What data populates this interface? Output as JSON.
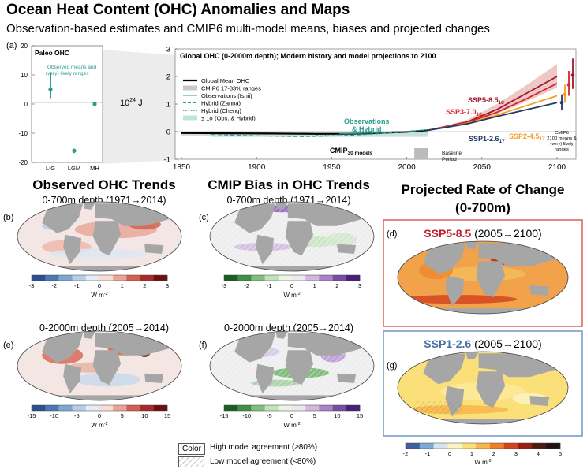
{
  "header": {
    "title": "Ocean Heat Content (OHC) Anomalies and Maps",
    "subtitle": "Observation-based estimates and CMIP6 multi-model means, biases and projected changes"
  },
  "panel_labels": {
    "a": "(a)",
    "b": "(b)",
    "c": "(c)",
    "d": "(d)",
    "e": "(e)",
    "f": "(f)",
    "g": "(g)"
  },
  "paleo": {
    "title": "Paleo OHC",
    "legend_line1": "Observed means and",
    "legend_line2": "(very) likely ranges",
    "unit_base": "10",
    "unit_exp": "24",
    "unit_suffix": " J",
    "color": "#2a9d8f"
  },
  "main_chart": {
    "title": "Global OHC (0-2000m depth); Modern history and model projections to 2100",
    "legend": [
      {
        "label": "Global Mean OHC",
        "style": "solid-black"
      },
      {
        "label": "CMIP6 17-83% ranges",
        "style": "grey-fill"
      },
      {
        "label": "Observations (Ishii)",
        "style": "teal-thin"
      },
      {
        "label": "Hybrid (Zanna)",
        "style": "teal-dash"
      },
      {
        "label": "Hybrid (Cheng)",
        "style": "teal-dot"
      },
      {
        "label": "± 1σ (Obs. & Hybrid)",
        "style": "teal-fill"
      }
    ],
    "annotations": {
      "obs_hybrid_line1": "Observations",
      "obs_hybrid_line2": "& Hybrid",
      "cmip_base": "CMIP",
      "cmip_sub": "30 models",
      "baseline_line1": "Baseline",
      "baseline_line2": "Period",
      "cmip6_box": [
        "CMIP6",
        "2100 means &",
        "(very) likely",
        "ranges"
      ]
    },
    "scenarios": [
      {
        "name": "SSP5-8.5",
        "count": "18",
        "color": "#9e1a2a"
      },
      {
        "name": "SSP3-7.0",
        "count": "18",
        "color": "#d9252e"
      },
      {
        "name": "SSP2-4.5",
        "count": "17",
        "color": "#f2a023"
      },
      {
        "name": "SSP1-2.6",
        "count": "17",
        "color": "#1f3a63"
      }
    ]
  },
  "sections": {
    "observed": {
      "heading": "Observed OHC Trends",
      "sub1": "0-700m depth (1971→2014)",
      "sub2": "0-2000m depth (2005→2014)"
    },
    "bias": {
      "heading": "CMIP Bias in OHC Trends",
      "sub1": "0-700m depth (1971→2014)",
      "sub2": "0-2000m depth (2005→2014)"
    },
    "projected": {
      "heading_line1": "Projected Rate of Change",
      "heading_line2": "(0-700m)",
      "ssp585_label": "SSP5-8.5",
      "ssp585_period": " (2005→2100)",
      "ssp126_label": "SSP1-2.6",
      "ssp126_period": " (2005→2100)"
    }
  },
  "colorbars": {
    "unit_base": "W m",
    "unit_exp": "-2",
    "b_ticks": [
      "-3",
      "-2",
      "-1",
      "0",
      "1",
      "2",
      "3"
    ],
    "c_ticks": [
      "-3",
      "-2",
      "-1",
      "0",
      "1",
      "2",
      "3"
    ],
    "e_ticks": [
      "-15",
      "-10",
      "-5",
      "0",
      "5",
      "10",
      "15"
    ],
    "f_ticks": [
      "-15",
      "-10",
      "-5",
      "0",
      "5",
      "10",
      "15"
    ],
    "g_ticks": [
      "-2",
      "-1",
      "0",
      "1",
      "2",
      "3",
      "4",
      "5"
    ]
  },
  "agreement_legend": {
    "color_box": "Color",
    "high": "High model agreement (≥80%)",
    "low": "Low model agreement (<80%)"
  },
  "chart_data": [
    {
      "type": "scatter",
      "title": "Paleo OHC",
      "categories": [
        "LIG",
        "LGM",
        "MH"
      ],
      "values": [
        5,
        -16,
        0
      ],
      "ranges": [
        [
          2,
          11
        ],
        [
          -16.8,
          -15.3
        ],
        [
          -0.6,
          0.6
        ]
      ],
      "ylim": [
        -20,
        20
      ],
      "yticks": [
        "20",
        "10",
        "0",
        "-10",
        "-20"
      ],
      "ylabel": "10^24 J"
    },
    {
      "type": "line",
      "title": "Global OHC (0-2000m depth); Modern history and model projections to 2100",
      "xlim": [
        1850,
        2100
      ],
      "ylim": [
        -1,
        3
      ],
      "xticks": [
        "1850",
        "1900",
        "1950",
        "2000",
        "2050",
        "2100"
      ],
      "yticks": [
        "3",
        "2",
        "1",
        "0",
        "-1"
      ],
      "series": [
        {
          "name": "Global Mean OHC",
          "x": [
            1850,
            1880,
            1910,
            1940,
            1960,
            1975,
            1990,
            2000,
            2014
          ],
          "y": [
            -0.05,
            -0.06,
            -0.07,
            -0.08,
            -0.08,
            -0.06,
            -0.03,
            -0.01,
            0.05
          ]
        },
        {
          "name": "Observations (Ishii)",
          "x": [
            1955,
            1970,
            1985,
            2000,
            2014
          ],
          "y": [
            -0.08,
            -0.06,
            -0.03,
            0.0,
            0.07
          ]
        },
        {
          "name": "Hybrid (Zanna)",
          "x": [
            1870,
            1900,
            1930,
            1955,
            1980,
            2000,
            2014
          ],
          "y": [
            -0.1,
            -0.15,
            -0.18,
            -0.15,
            -0.08,
            0.0,
            0.07
          ]
        },
        {
          "name": "Hybrid (Cheng)",
          "x": [
            1940,
            1960,
            1980,
            2000,
            2014
          ],
          "y": [
            -0.12,
            -0.1,
            -0.05,
            0.0,
            0.07
          ]
        },
        {
          "name": "SSP5-8.5",
          "x": [
            2014,
            2040,
            2060,
            2080,
            2100
          ],
          "y": [
            0.05,
            0.35,
            0.8,
            1.4,
            2.0
          ]
        },
        {
          "name": "SSP3-7.0",
          "x": [
            2014,
            2040,
            2060,
            2080,
            2100
          ],
          "y": [
            0.05,
            0.33,
            0.7,
            1.2,
            1.75
          ]
        },
        {
          "name": "SSP2-4.5",
          "x": [
            2014,
            2040,
            2060,
            2080,
            2100
          ],
          "y": [
            0.05,
            0.3,
            0.6,
            0.95,
            1.3
          ]
        },
        {
          "name": "SSP1-2.6",
          "x": [
            2014,
            2040,
            2060,
            2080,
            2100
          ],
          "y": [
            0.05,
            0.28,
            0.55,
            0.8,
            1.05
          ]
        }
      ],
      "band_ssp585": {
        "x": [
          2014,
          2040,
          2060,
          2080,
          2100
        ],
        "low": [
          0.05,
          0.28,
          0.65,
          1.1,
          1.6
        ],
        "high": [
          0.05,
          0.42,
          1.0,
          1.7,
          2.45
        ]
      },
      "end_ranges_2100": [
        {
          "name": "SSP1-2.6",
          "mean": 1.05,
          "likely": [
            0.8,
            1.35
          ]
        },
        {
          "name": "SSP2-4.5",
          "mean": 1.35,
          "likely": [
            1.05,
            1.7
          ]
        },
        {
          "name": "SSP3-7.0",
          "mean": 1.7,
          "likely": [
            1.3,
            2.2
          ]
        },
        {
          "name": "SSP5-8.5",
          "mean": 2.05,
          "likely": [
            1.55,
            2.65
          ]
        }
      ],
      "baseline_period": [
        2005,
        2014
      ]
    }
  ]
}
